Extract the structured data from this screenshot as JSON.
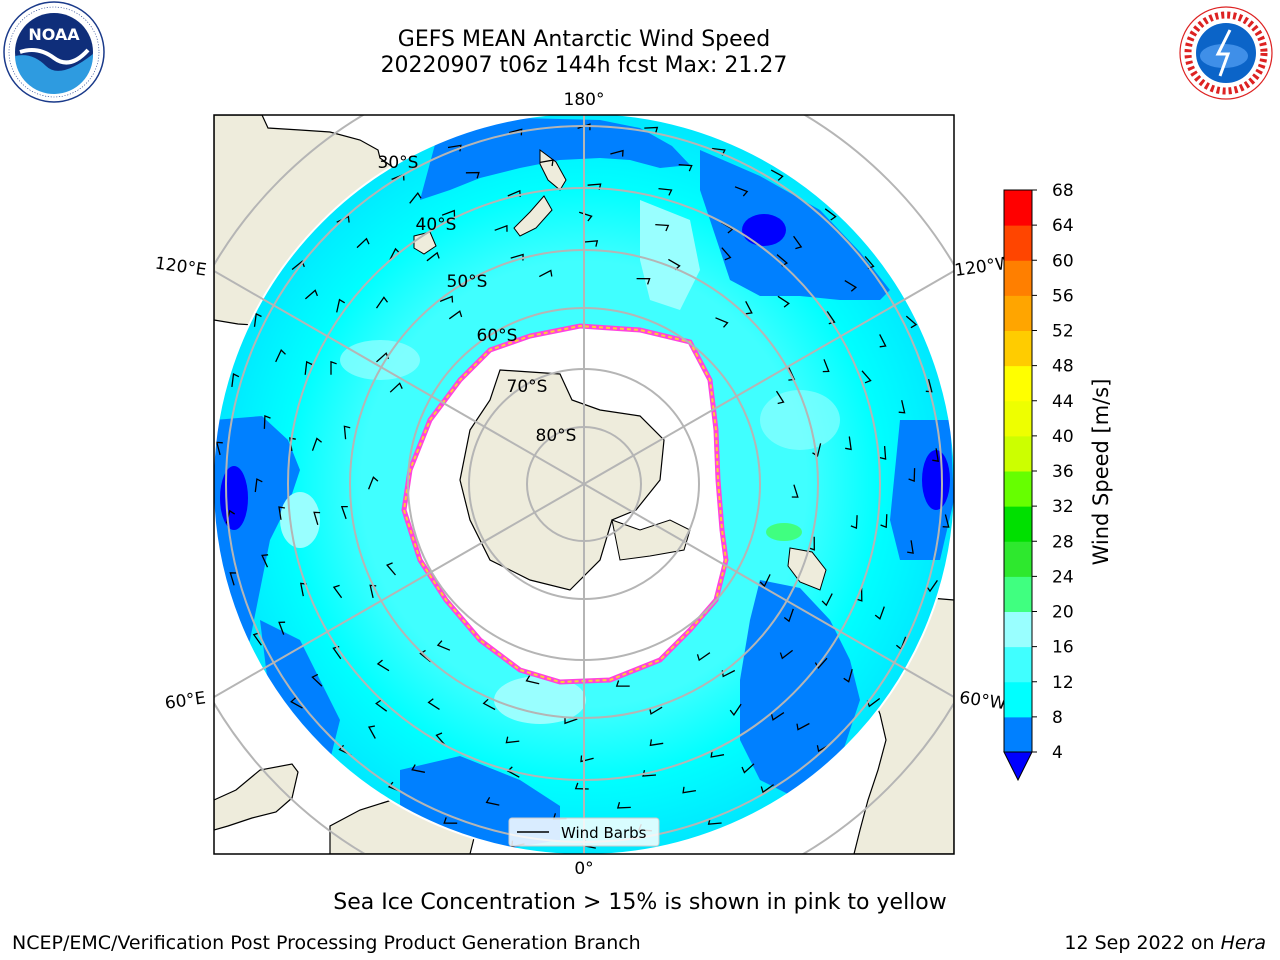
{
  "header": {
    "title_line1": "GEFS MEAN Antarctic Wind Speed",
    "title_line2": "20220907 t06z 144h fcst   Max: 21.27"
  },
  "map": {
    "projection": "south-polar-stereographic",
    "lon_labels": {
      "top": "180°",
      "bottom": "0°",
      "left_upper": "120°E",
      "left_lower": "60°E",
      "right_upper": "120°W",
      "right_lower": "60°W"
    },
    "lat_labels": [
      "30°S",
      "40°S",
      "50°S",
      "60°S",
      "70°S",
      "80°S"
    ],
    "legend_label": "Wind Barbs",
    "colors": {
      "land": "#eeecdc",
      "sea_ice_interior": "#ffffff",
      "ice_edge_pink": "#ff44dd",
      "ice_edge_yellow": "#ffcc33",
      "grid": "#b5b5b5"
    }
  },
  "colorbar": {
    "label": "Wind Speed [m/s]",
    "ticks": [
      "4",
      "8",
      "12",
      "16",
      "20",
      "24",
      "28",
      "32",
      "36",
      "40",
      "44",
      "48",
      "52",
      "56",
      "60",
      "64",
      "68"
    ],
    "colors": [
      "#0000ff",
      "#0080ff",
      "#00ffff",
      "#40ffff",
      "#99ffff",
      "#40ff80",
      "#2ee82e",
      "#00e000",
      "#66ff00",
      "#ccff00",
      "#eeff00",
      "#ffff00",
      "#ffcc00",
      "#ffa500",
      "#ff7f00",
      "#ff4500",
      "#ff0000"
    ],
    "extend": "min"
  },
  "footer": {
    "caption": "Sea Ice Concentration > 15% is shown in pink to yellow",
    "credit_left": "NCEP/EMC/Verification Post Processing Product Generation Branch",
    "credit_date": "12 Sep 2022 on ",
    "credit_machine": "Hera"
  },
  "logos": {
    "left": "NOAA",
    "right": "NATIONAL WEATHER SERVICE"
  }
}
